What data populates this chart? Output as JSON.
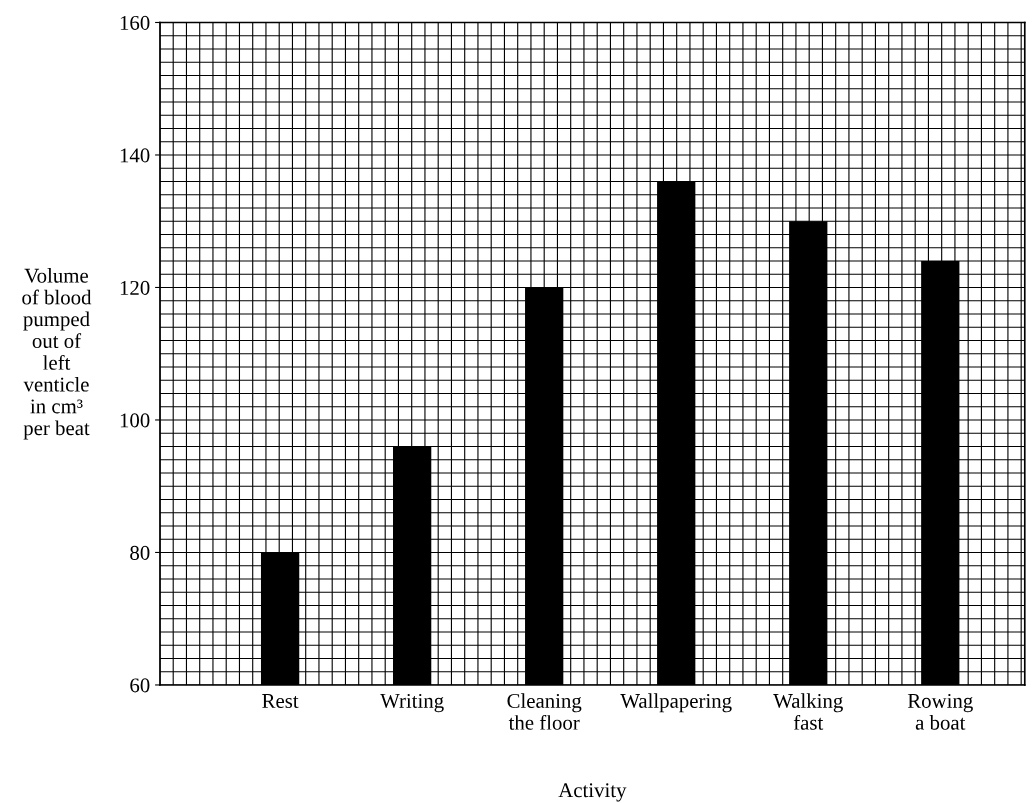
{
  "chart_data": {
    "type": "bar",
    "xlabel": "Activity",
    "ylabel": "Volume\nof blood\npumped\nout of\nleft\nventicle\nin cm³\nper beat",
    "categories": [
      "Rest",
      "Writing",
      "Cleaning\nthe floor",
      "Wallpapering",
      "Walking\nfast",
      "Rowing\na boat"
    ],
    "values": [
      80,
      96,
      120,
      136,
      130,
      124
    ],
    "color": "#000000",
    "ylim": [
      60,
      160
    ],
    "yticks": [
      60,
      80,
      100,
      120,
      140,
      160
    ],
    "grid": true
  }
}
